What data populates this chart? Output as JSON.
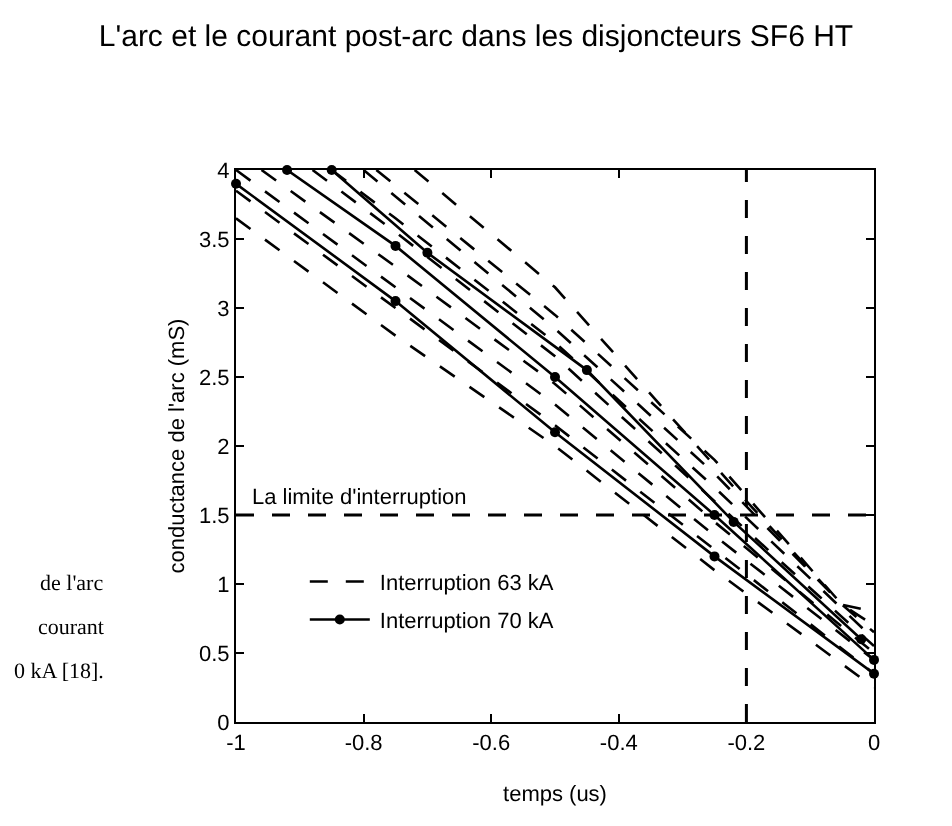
{
  "chart_data": {
    "type": "line",
    "title": "L'arc et le courant post-arc dans les disjoncteurs SF6 HT",
    "xlabel": "temps (us)",
    "ylabel": "conductance de l'arc (mS)",
    "xlim": [
      -1,
      0
    ],
    "xticks": [
      -1,
      -0.8,
      -0.6,
      -0.4,
      -0.2,
      0
    ],
    "ylim": [
      0,
      4
    ],
    "yticks": [
      0,
      0.5,
      1,
      1.5,
      2,
      2.5,
      3,
      3.5,
      4
    ],
    "legend": "left",
    "series": [
      {
        "name": "Interruption 63 kA",
        "color": "#000000",
        "line_style": "dashed",
        "marker": "none",
        "x": [
          -1,
          -0.75,
          -0.5,
          -0.25,
          0
        ],
        "values": [
          3.65,
          2.8,
          2.0,
          1.1,
          0.25
        ]
      },
      {
        "color": "#000000",
        "line_style": "dashed",
        "marker": "none",
        "x": [
          -1,
          -0.75,
          -0.5,
          -0.25,
          0
        ],
        "values": [
          3.85,
          3.0,
          2.15,
          1.25,
          0.35
        ]
      },
      {
        "color": "#000000",
        "line_style": "dashed",
        "marker": "none",
        "x": [
          -1,
          -0.75,
          -0.5,
          -0.25,
          0
        ],
        "values": [
          4,
          3.15,
          2.3,
          1.35,
          0.45
        ]
      },
      {
        "color": "#000000",
        "line_style": "dashed",
        "marker": "none",
        "x": [
          -0.96,
          -0.75,
          -0.5,
          -0.25,
          0
        ],
        "values": [
          4,
          3.3,
          2.45,
          1.45,
          0.5
        ]
      },
      {
        "color": "#000000",
        "line_style": "dashed",
        "marker": "none",
        "x": [
          -0.88,
          -0.75,
          -0.5,
          -0.25,
          0
        ],
        "values": [
          4,
          3.55,
          2.65,
          1.6,
          0.55
        ]
      },
      {
        "color": "#000000",
        "line_style": "dashed",
        "marker": "none",
        "x": [
          -0.85,
          -0.75,
          -0.5,
          -0.25,
          0
        ],
        "values": [
          4,
          3.65,
          2.75,
          1.7,
          0.6
        ]
      },
      {
        "color": "#000000",
        "line_style": "dashed",
        "marker": "none",
        "x": [
          -0.8,
          -0.5,
          -0.25,
          -0.05,
          0
        ],
        "values": [
          4,
          2.85,
          1.8,
          0.85,
          0.65
        ]
      },
      {
        "color": "#000000",
        "line_style": "dashed",
        "marker": "none",
        "x": [
          -0.78,
          -0.5,
          -0.25,
          -0.05,
          0
        ],
        "values": [
          4,
          2.95,
          1.9,
          0.85,
          0.7
        ]
      },
      {
        "color": "#000000",
        "line_style": "dashed",
        "marker": "none",
        "x": [
          -0.72,
          -0.5,
          -0.2,
          -0.05,
          0
        ],
        "values": [
          4,
          3.15,
          1.6,
          0.85,
          0.8
        ]
      },
      {
        "name": "Interruption 70 kA",
        "color": "#000000",
        "line_style": "solid",
        "marker": "circle",
        "x": [
          -1,
          -0.75,
          -0.5,
          -0.25,
          0
        ],
        "values": [
          3.9,
          3.05,
          2.1,
          1.2,
          0.35
        ]
      },
      {
        "color": "#000000",
        "line_style": "solid",
        "marker": "circle",
        "x": [
          -0.92,
          -0.75,
          -0.5,
          -0.25,
          0
        ],
        "values": [
          4,
          3.45,
          2.5,
          1.5,
          0.45
        ]
      },
      {
        "color": "#000000",
        "line_style": "solid",
        "marker": "circle",
        "x": [
          -0.85,
          -0.7,
          -0.45,
          -0.22,
          -0.02
        ],
        "values": [
          4,
          3.4,
          2.55,
          1.45,
          0.6
        ]
      }
    ],
    "ref_lines": [
      {
        "axis": "y",
        "value": 1.5,
        "label": "La limite d'interruption",
        "line_style": "dashed",
        "color": "#000000"
      },
      {
        "axis": "x",
        "value": -0.2,
        "line_style": "dashed",
        "color": "#000000"
      }
    ],
    "annotations": [
      "de l'arc",
      "courant",
      "0 kA [18]."
    ]
  }
}
